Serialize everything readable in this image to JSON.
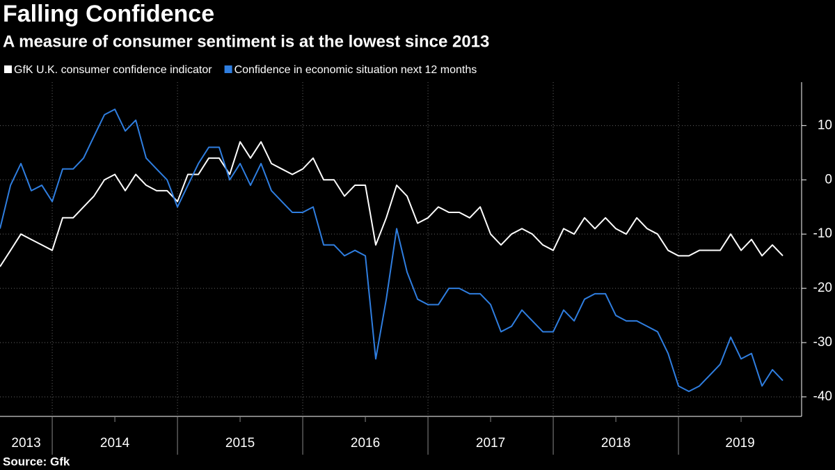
{
  "chart_data": {
    "type": "line",
    "title": "Falling Confidence",
    "subtitle": "A measure of consumer sentiment is at the lowest since 2013",
    "source": "Source: Gfk",
    "x": [
      2013.583,
      2013.667,
      2013.75,
      2013.833,
      2013.917,
      2014,
      2014.083,
      2014.167,
      2014.25,
      2014.333,
      2014.417,
      2014.5,
      2014.583,
      2014.667,
      2014.75,
      2014.833,
      2014.917,
      2015,
      2015.083,
      2015.167,
      2015.25,
      2015.333,
      2015.417,
      2015.5,
      2015.583,
      2015.667,
      2015.75,
      2015.833,
      2015.917,
      2016,
      2016.083,
      2016.167,
      2016.25,
      2016.333,
      2016.417,
      2016.5,
      2016.583,
      2016.667,
      2016.75,
      2016.833,
      2016.917,
      2017,
      2017.083,
      2017.167,
      2017.25,
      2017.333,
      2017.417,
      2017.5,
      2017.583,
      2017.667,
      2017.75,
      2017.833,
      2017.917,
      2018,
      2018.083,
      2018.167,
      2018.25,
      2018.333,
      2018.417,
      2018.5,
      2018.583,
      2018.667,
      2018.75,
      2018.833,
      2018.917,
      2019,
      2019.083,
      2019.167,
      2019.25,
      2019.333,
      2019.417,
      2019.5,
      2019.583,
      2019.667,
      2019.75,
      2019.833
    ],
    "series": [
      {
        "name": "GfK U.K. consumer confidence indicator",
        "color": "#ffffff",
        "values": [
          -16,
          -13,
          -10,
          -11,
          -12,
          -13,
          -7,
          -7,
          -5,
          -3,
          0,
          1,
          -2,
          1,
          -1,
          -2,
          -2,
          -4,
          1,
          1,
          4,
          4,
          1,
          7,
          4,
          7,
          3,
          2,
          1,
          2,
          4,
          0,
          0,
          -3,
          -1,
          -1,
          -12,
          -7,
          -1,
          -3,
          -8,
          -7,
          -5,
          -6,
          -6,
          -7,
          -5,
          -10,
          -12,
          -10,
          -9,
          -10,
          -12,
          -13,
          -9,
          -10,
          -7,
          -9,
          -7,
          -9,
          -10,
          -7,
          -9,
          -10,
          -13,
          -14,
          -14,
          -13,
          -13,
          -13,
          -10,
          -13,
          -11,
          -14,
          -12,
          -14
        ]
      },
      {
        "name": "Confidence in economic situation next 12 months",
        "color": "#2f7ee0",
        "values": [
          -9,
          -1,
          3,
          -2,
          -1,
          -4,
          2,
          2,
          4,
          8,
          12,
          13,
          9,
          11,
          4,
          2,
          0,
          -5,
          -1,
          3,
          6,
          6,
          0,
          3,
          -1,
          3,
          -2,
          -4,
          -6,
          -6,
          -5,
          -12,
          -12,
          -14,
          -13,
          -14,
          -33,
          -22,
          -9,
          -17,
          -22,
          -23,
          -23,
          -20,
          -20,
          -21,
          -21,
          -23,
          -28,
          -27,
          -24,
          -26,
          -28,
          -28,
          -24,
          -26,
          -22,
          -21,
          -21,
          -25,
          -26,
          -26,
          -27,
          -28,
          -32,
          -38,
          -39,
          -38,
          -36,
          -34,
          -29,
          -33,
          -32,
          -38,
          -35,
          -37
        ]
      }
    ],
    "xlim": [
      2013.583,
      2019.983
    ],
    "xticks": [
      2013,
      2014,
      2015,
      2016,
      2017,
      2018,
      2019
    ],
    "ylim": [
      -43.6,
      18
    ],
    "yticks": [
      10,
      0,
      -10,
      -20,
      -30,
      -40
    ],
    "grid": true
  }
}
